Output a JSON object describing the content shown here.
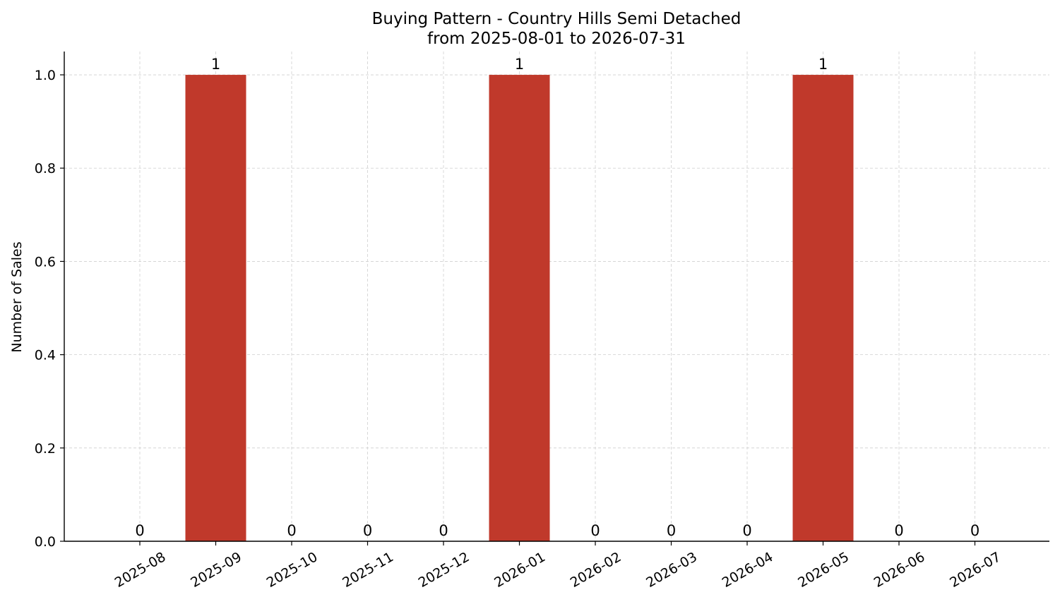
{
  "chart_data": {
    "type": "bar",
    "title": "Buying Pattern - Country Hills Semi Detached",
    "subtitle": "from 2025-08-01 to 2026-07-31",
    "xlabel": "",
    "ylabel": "Number of Sales",
    "categories": [
      "2025-08",
      "2025-09",
      "2025-10",
      "2025-11",
      "2025-12",
      "2026-01",
      "2026-02",
      "2026-03",
      "2026-04",
      "2026-05",
      "2026-06",
      "2026-07"
    ],
    "values": [
      0,
      1,
      0,
      0,
      0,
      1,
      0,
      0,
      0,
      1,
      0,
      0
    ],
    "data_labels": [
      "0",
      "1",
      "0",
      "0",
      "0",
      "1",
      "0",
      "0",
      "0",
      "1",
      "0",
      "0"
    ],
    "ylim": [
      0,
      1.05
    ],
    "yticks": [
      0.0,
      0.2,
      0.4,
      0.6,
      0.8,
      1.0
    ],
    "ytick_labels": [
      "0.0",
      "0.2",
      "0.4",
      "0.6",
      "0.8",
      "1.0"
    ],
    "grid": true,
    "bar_color": "#c0392b"
  }
}
